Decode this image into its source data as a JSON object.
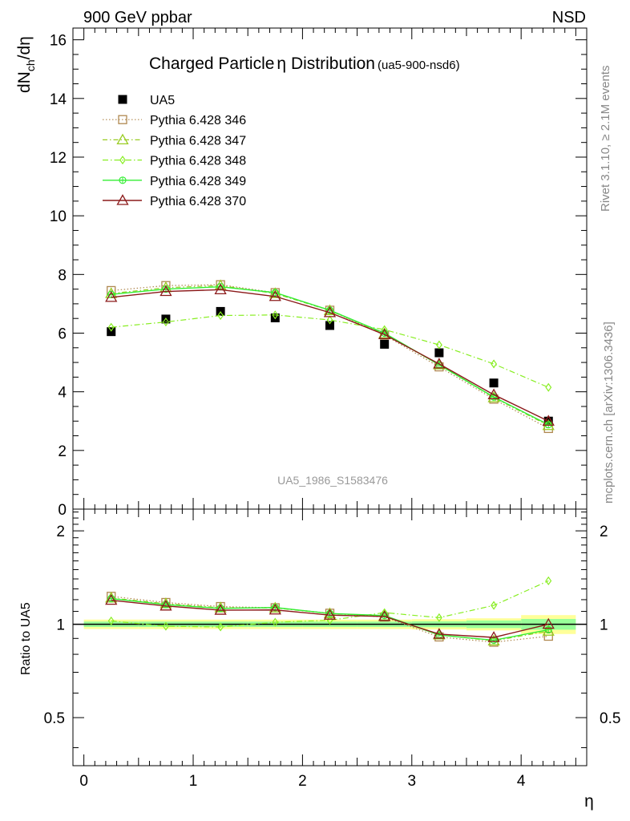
{
  "header": {
    "left": "900 GeV ppbar",
    "right": "NSD"
  },
  "side_labels": {
    "top": "Rivet 3.1.10, ≥ 2.1M events",
    "bottom": "mcplots.cern.ch [arXiv:1306.3436]"
  },
  "watermark": "UA5_1986_S1583476",
  "colors": {
    "data": "#000000",
    "p346": "#b08850",
    "p347": "#99cc22",
    "p348": "#88ee22",
    "p349": "#33ee33",
    "p370": "#8b1a1a",
    "band_yellow": "#ffff99",
    "band_green": "#99ff99"
  },
  "chart_data": [
    {
      "type": "line",
      "title": "Charged Particle",
      "title_symbol": "η",
      "title_suffix": " Distribution",
      "title_tag": "(ua5-900-nsd6)",
      "xlabel": "η",
      "ylabel": "dN",
      "ylabel_sub": "ch",
      "ylabel_tail": "/dη",
      "xlim": [
        -0.1,
        4.6
      ],
      "ylim": [
        0,
        16.4
      ],
      "y_ticks": [
        "0",
        "2",
        "4",
        "6",
        "8",
        "10",
        "12",
        "14",
        "16"
      ],
      "x": [
        0.25,
        0.75,
        1.25,
        1.75,
        2.25,
        2.75,
        3.25,
        3.75,
        4.25
      ],
      "legend_placement": "top-left",
      "series": [
        {
          "name": "UA5",
          "style": "data",
          "values": [
            6.05,
            6.48,
            6.74,
            6.52,
            6.26,
            5.62,
            5.33,
            4.3,
            3.0
          ]
        },
        {
          "name": "Pythia 6.428 346",
          "style": "p346",
          "values": [
            7.45,
            7.62,
            7.65,
            7.38,
            6.78,
            5.93,
            4.85,
            3.75,
            2.75
          ]
        },
        {
          "name": "Pythia 6.428 347",
          "style": "p347",
          "values": [
            7.35,
            7.55,
            7.62,
            7.35,
            6.77,
            5.98,
            4.92,
            3.8,
            2.85
          ]
        },
        {
          "name": "Pythia 6.428 348",
          "style": "p348",
          "values": [
            6.2,
            6.38,
            6.6,
            6.62,
            6.45,
            6.12,
            5.6,
            4.95,
            4.15
          ]
        },
        {
          "name": "Pythia 6.428 349",
          "style": "p349",
          "values": [
            7.32,
            7.5,
            7.58,
            7.38,
            6.78,
            6.0,
            4.92,
            3.82,
            2.88
          ]
        },
        {
          "name": "Pythia 6.428 370",
          "style": "p370",
          "values": [
            7.22,
            7.42,
            7.48,
            7.25,
            6.7,
            5.95,
            4.95,
            3.9,
            3.0
          ]
        }
      ]
    },
    {
      "type": "line",
      "title": "",
      "xlabel": "η",
      "ylabel": "Ratio to UA5",
      "xlim": [
        -0.1,
        4.6
      ],
      "ylim": [
        0.35,
        2.35
      ],
      "y_scale": "log",
      "y_tick_values": [
        0.5,
        1,
        2
      ],
      "y_tick_labels": [
        "0.5",
        "1",
        "2"
      ],
      "x_tick_values": [
        0,
        1,
        2,
        3,
        4
      ],
      "x_tick_labels": [
        "0",
        "1",
        "2",
        "3",
        "4"
      ],
      "x": [
        0.25,
        0.75,
        1.25,
        1.75,
        2.25,
        2.75,
        3.25,
        3.75,
        4.25
      ],
      "reference_line": 1,
      "uncertainty_bands": [
        {
          "x_range": [
            0,
            0.5
          ],
          "yellow": [
            0.965,
            1.035
          ],
          "green": [
            0.98,
            1.02
          ]
        },
        {
          "x_range": [
            0.5,
            1.0
          ],
          "yellow": [
            0.965,
            1.035
          ],
          "green": [
            0.98,
            1.02
          ]
        },
        {
          "x_range": [
            1.0,
            1.5
          ],
          "yellow": [
            0.965,
            1.035
          ],
          "green": [
            0.98,
            1.02
          ]
        },
        {
          "x_range": [
            1.5,
            2.0
          ],
          "yellow": [
            0.965,
            1.035
          ],
          "green": [
            0.98,
            1.02
          ]
        },
        {
          "x_range": [
            2.0,
            2.5
          ],
          "yellow": [
            0.965,
            1.035
          ],
          "green": [
            0.98,
            1.02
          ]
        },
        {
          "x_range": [
            2.5,
            3.0
          ],
          "yellow": [
            0.965,
            1.035
          ],
          "green": [
            0.98,
            1.02
          ]
        },
        {
          "x_range": [
            3.0,
            3.5
          ],
          "yellow": [
            0.962,
            1.038
          ],
          "green": [
            0.978,
            1.022
          ]
        },
        {
          "x_range": [
            3.5,
            4.0
          ],
          "yellow": [
            0.955,
            1.045
          ],
          "green": [
            0.972,
            1.028
          ]
        },
        {
          "x_range": [
            4.0,
            4.5
          ],
          "yellow": [
            0.93,
            1.07
          ],
          "green": [
            0.96,
            1.04
          ]
        }
      ],
      "series": [
        {
          "name": "Pythia 6.428 346",
          "style": "p346",
          "values": [
            1.23,
            1.175,
            1.14,
            1.13,
            1.085,
            1.055,
            0.91,
            0.875,
            0.915
          ]
        },
        {
          "name": "Pythia 6.428 347",
          "style": "p347",
          "values": [
            1.215,
            1.165,
            1.13,
            1.128,
            1.082,
            1.064,
            0.924,
            0.884,
            0.95
          ]
        },
        {
          "name": "Pythia 6.428 348",
          "style": "p348",
          "values": [
            1.025,
            0.985,
            0.98,
            1.015,
            1.03,
            1.09,
            1.05,
            1.15,
            1.38
          ]
        },
        {
          "name": "Pythia 6.428 349",
          "style": "p349",
          "values": [
            1.21,
            1.157,
            1.125,
            1.132,
            1.083,
            1.067,
            0.923,
            0.888,
            0.96
          ]
        },
        {
          "name": "Pythia 6.428 370",
          "style": "p370",
          "values": [
            1.195,
            1.145,
            1.11,
            1.112,
            1.07,
            1.059,
            0.929,
            0.907,
            1.0
          ]
        }
      ]
    }
  ]
}
